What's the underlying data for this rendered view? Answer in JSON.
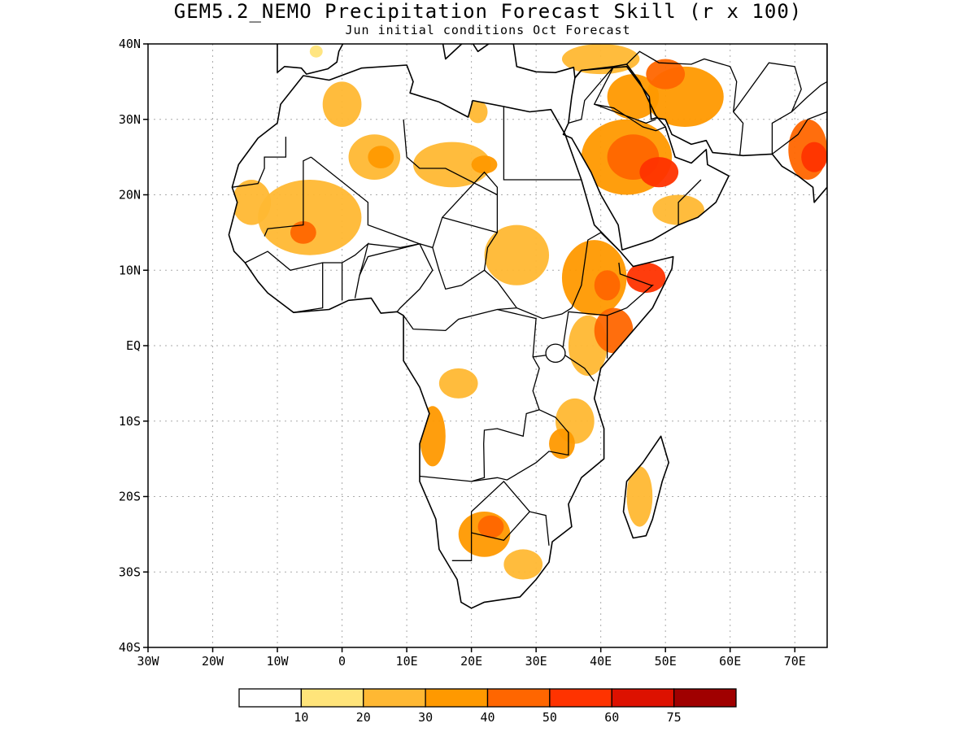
{
  "title": "GEM5.2_NEMO Precipitation Forecast Skill (r x 100)",
  "subtitle": "Jun initial conditions  Oct Forecast",
  "map": {
    "lon_range": [
      -30,
      75
    ],
    "lat_range": [
      -40,
      40
    ],
    "lat_ticks": [
      {
        "value": 40,
        "label": "40N"
      },
      {
        "value": 30,
        "label": "30N"
      },
      {
        "value": 20,
        "label": "20N"
      },
      {
        "value": 10,
        "label": "10N"
      },
      {
        "value": 0,
        "label": "EQ"
      },
      {
        "value": -10,
        "label": "10S"
      },
      {
        "value": -20,
        "label": "20S"
      },
      {
        "value": -30,
        "label": "30S"
      },
      {
        "value": -40,
        "label": "40S"
      }
    ],
    "lon_ticks": [
      {
        "value": -30,
        "label": "30W"
      },
      {
        "value": -20,
        "label": "20W"
      },
      {
        "value": -10,
        "label": "10W"
      },
      {
        "value": 0,
        "label": "0"
      },
      {
        "value": 10,
        "label": "10E"
      },
      {
        "value": 20,
        "label": "20E"
      },
      {
        "value": 30,
        "label": "30E"
      },
      {
        "value": 40,
        "label": "40E"
      },
      {
        "value": 50,
        "label": "50E"
      },
      {
        "value": 60,
        "label": "60E"
      },
      {
        "value": 70,
        "label": "70E"
      }
    ]
  },
  "colorbar": {
    "colors": [
      "#ffffff",
      "#ffe47a",
      "#ffb833",
      "#ff9900",
      "#ff6600",
      "#ff3300",
      "#dd1100",
      "#a00000"
    ],
    "labels": [
      "10",
      "20",
      "30",
      "40",
      "50",
      "60",
      "75"
    ]
  },
  "skill_regions": [
    {
      "name": "senegal-mauritania",
      "lon": -14,
      "lat": 19,
      "rx": 3,
      "ry": 3,
      "level": 2
    },
    {
      "name": "mali-niger",
      "lon": -5,
      "lat": 17,
      "rx": 8,
      "ry": 5,
      "level": 2
    },
    {
      "name": "mali-core",
      "lon": -6,
      "lat": 15,
      "rx": 2,
      "ry": 1.5,
      "level": 4
    },
    {
      "name": "algeria-north",
      "lon": 0,
      "lat": 32,
      "rx": 3,
      "ry": 3,
      "level": 2
    },
    {
      "name": "algeria-central",
      "lon": 5,
      "lat": 25,
      "rx": 4,
      "ry": 3,
      "level": 2
    },
    {
      "name": "algeria-ahaggar",
      "lon": 6,
      "lat": 25,
      "rx": 2,
      "ry": 1.5,
      "level": 3
    },
    {
      "name": "libya-south",
      "lon": 17,
      "lat": 24,
      "rx": 6,
      "ry": 3,
      "level": 2
    },
    {
      "name": "libya-core",
      "lon": 22,
      "lat": 24,
      "rx": 2,
      "ry": 1.2,
      "level": 3
    },
    {
      "name": "libya-coast",
      "lon": 21,
      "lat": 31,
      "rx": 1.5,
      "ry": 1.5,
      "level": 2
    },
    {
      "name": "north-coast",
      "lon": -4,
      "lat": 39,
      "rx": 1,
      "ry": 0.8,
      "level": 1
    },
    {
      "name": "chad-sudan",
      "lon": 27,
      "lat": 12,
      "rx": 5,
      "ry": 4,
      "level": 2
    },
    {
      "name": "ethiopia",
      "lon": 39,
      "lat": 9,
      "rx": 5,
      "ry": 5,
      "level": 3
    },
    {
      "name": "ethiopia-core",
      "lon": 41,
      "lat": 8,
      "rx": 2,
      "ry": 2,
      "level": 4
    },
    {
      "name": "somalia-north",
      "lon": 47,
      "lat": 9,
      "rx": 3,
      "ry": 2,
      "level": 5
    },
    {
      "name": "kenya-somalia",
      "lon": 42,
      "lat": 2,
      "rx": 3,
      "ry": 3,
      "level": 4
    },
    {
      "name": "east-africa",
      "lon": 38,
      "lat": 0,
      "rx": 3,
      "ry": 4,
      "level": 2
    },
    {
      "name": "tanzania",
      "lon": 36,
      "lat": -10,
      "rx": 3,
      "ry": 3,
      "level": 2
    },
    {
      "name": "malawi",
      "lon": 34,
      "lat": -13,
      "rx": 2,
      "ry": 2,
      "level": 3
    },
    {
      "name": "congo-central",
      "lon": 18,
      "lat": -5,
      "rx": 3,
      "ry": 2,
      "level": 2
    },
    {
      "name": "angola",
      "lon": 14,
      "lat": -12,
      "rx": 2,
      "ry": 4,
      "level": 3
    },
    {
      "name": "botswana-namibia",
      "lon": 22,
      "lat": -25,
      "rx": 4,
      "ry": 3,
      "level": 3
    },
    {
      "name": "botswana-core",
      "lon": 23,
      "lat": -24,
      "rx": 2,
      "ry": 1.5,
      "level": 4
    },
    {
      "name": "south-africa",
      "lon": 28,
      "lat": -29,
      "rx": 3,
      "ry": 2,
      "level": 2
    },
    {
      "name": "madagascar",
      "lon": 46,
      "lat": -20,
      "rx": 2,
      "ry": 4,
      "level": 2
    },
    {
      "name": "saudi-arabia",
      "lon": 44,
      "lat": 25,
      "rx": 7,
      "ry": 5,
      "level": 3
    },
    {
      "name": "saudi-core",
      "lon": 45,
      "lat": 25,
      "rx": 4,
      "ry": 3,
      "level": 4
    },
    {
      "name": "iraq-gulf",
      "lon": 49,
      "lat": 23,
      "rx": 3,
      "ry": 2,
      "level": 5
    },
    {
      "name": "iraq-north",
      "lon": 45,
      "lat": 33,
      "rx": 4,
      "ry": 3,
      "level": 3
    },
    {
      "name": "iran",
      "lon": 53,
      "lat": 33,
      "rx": 6,
      "ry": 4,
      "level": 3
    },
    {
      "name": "iran-core",
      "lon": 50,
      "lat": 36,
      "rx": 3,
      "ry": 2,
      "level": 4
    },
    {
      "name": "turkey",
      "lon": 40,
      "lat": 38,
      "rx": 6,
      "ry": 2,
      "level": 2
    },
    {
      "name": "india-west",
      "lon": 72,
      "lat": 26,
      "rx": 3,
      "ry": 4,
      "level": 4
    },
    {
      "name": "india-core",
      "lon": 73,
      "lat": 25,
      "rx": 2,
      "ry": 2,
      "level": 5
    },
    {
      "name": "yemen-oman",
      "lon": 52,
      "lat": 18,
      "rx": 4,
      "ry": 2,
      "level": 2
    }
  ]
}
